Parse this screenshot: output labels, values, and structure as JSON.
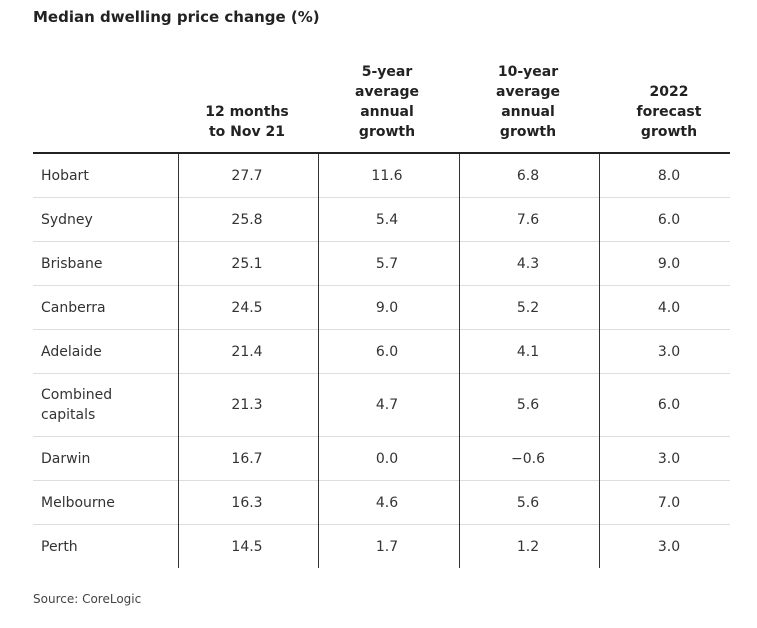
{
  "title": "Median dwelling price change (%)",
  "source": "Source: CoreLogic",
  "chart_data": {
    "type": "table",
    "columns": [
      "",
      "12 months\nto Nov 21",
      "5-year\naverage\nannual\ngrowth",
      "10-year\naverage\nannual\ngrowth",
      "2022\nforecast\ngrowth"
    ],
    "rows": [
      {
        "name": "Hobart",
        "values": [
          "27.7",
          "11.6",
          "6.8",
          "8.0"
        ]
      },
      {
        "name": "Sydney",
        "values": [
          "25.8",
          "5.4",
          "7.6",
          "6.0"
        ]
      },
      {
        "name": "Brisbane",
        "values": [
          "25.1",
          "5.7",
          "4.3",
          "9.0"
        ]
      },
      {
        "name": "Canberra",
        "values": [
          "24.5",
          "9.0",
          "5.2",
          "4.0"
        ]
      },
      {
        "name": "Adelaide",
        "values": [
          "21.4",
          "6.0",
          "4.1",
          "3.0"
        ]
      },
      {
        "name": "Combined\ncapitals",
        "values": [
          "21.3",
          "4.7",
          "5.6",
          "6.0"
        ]
      },
      {
        "name": "Darwin",
        "values": [
          "16.7",
          "0.0",
          "−0.6",
          "3.0"
        ]
      },
      {
        "name": "Melbourne",
        "values": [
          "16.3",
          "4.6",
          "5.6",
          "7.0"
        ]
      },
      {
        "name": "Perth",
        "values": [
          "14.5",
          "1.7",
          "1.2",
          "3.0"
        ]
      }
    ]
  }
}
